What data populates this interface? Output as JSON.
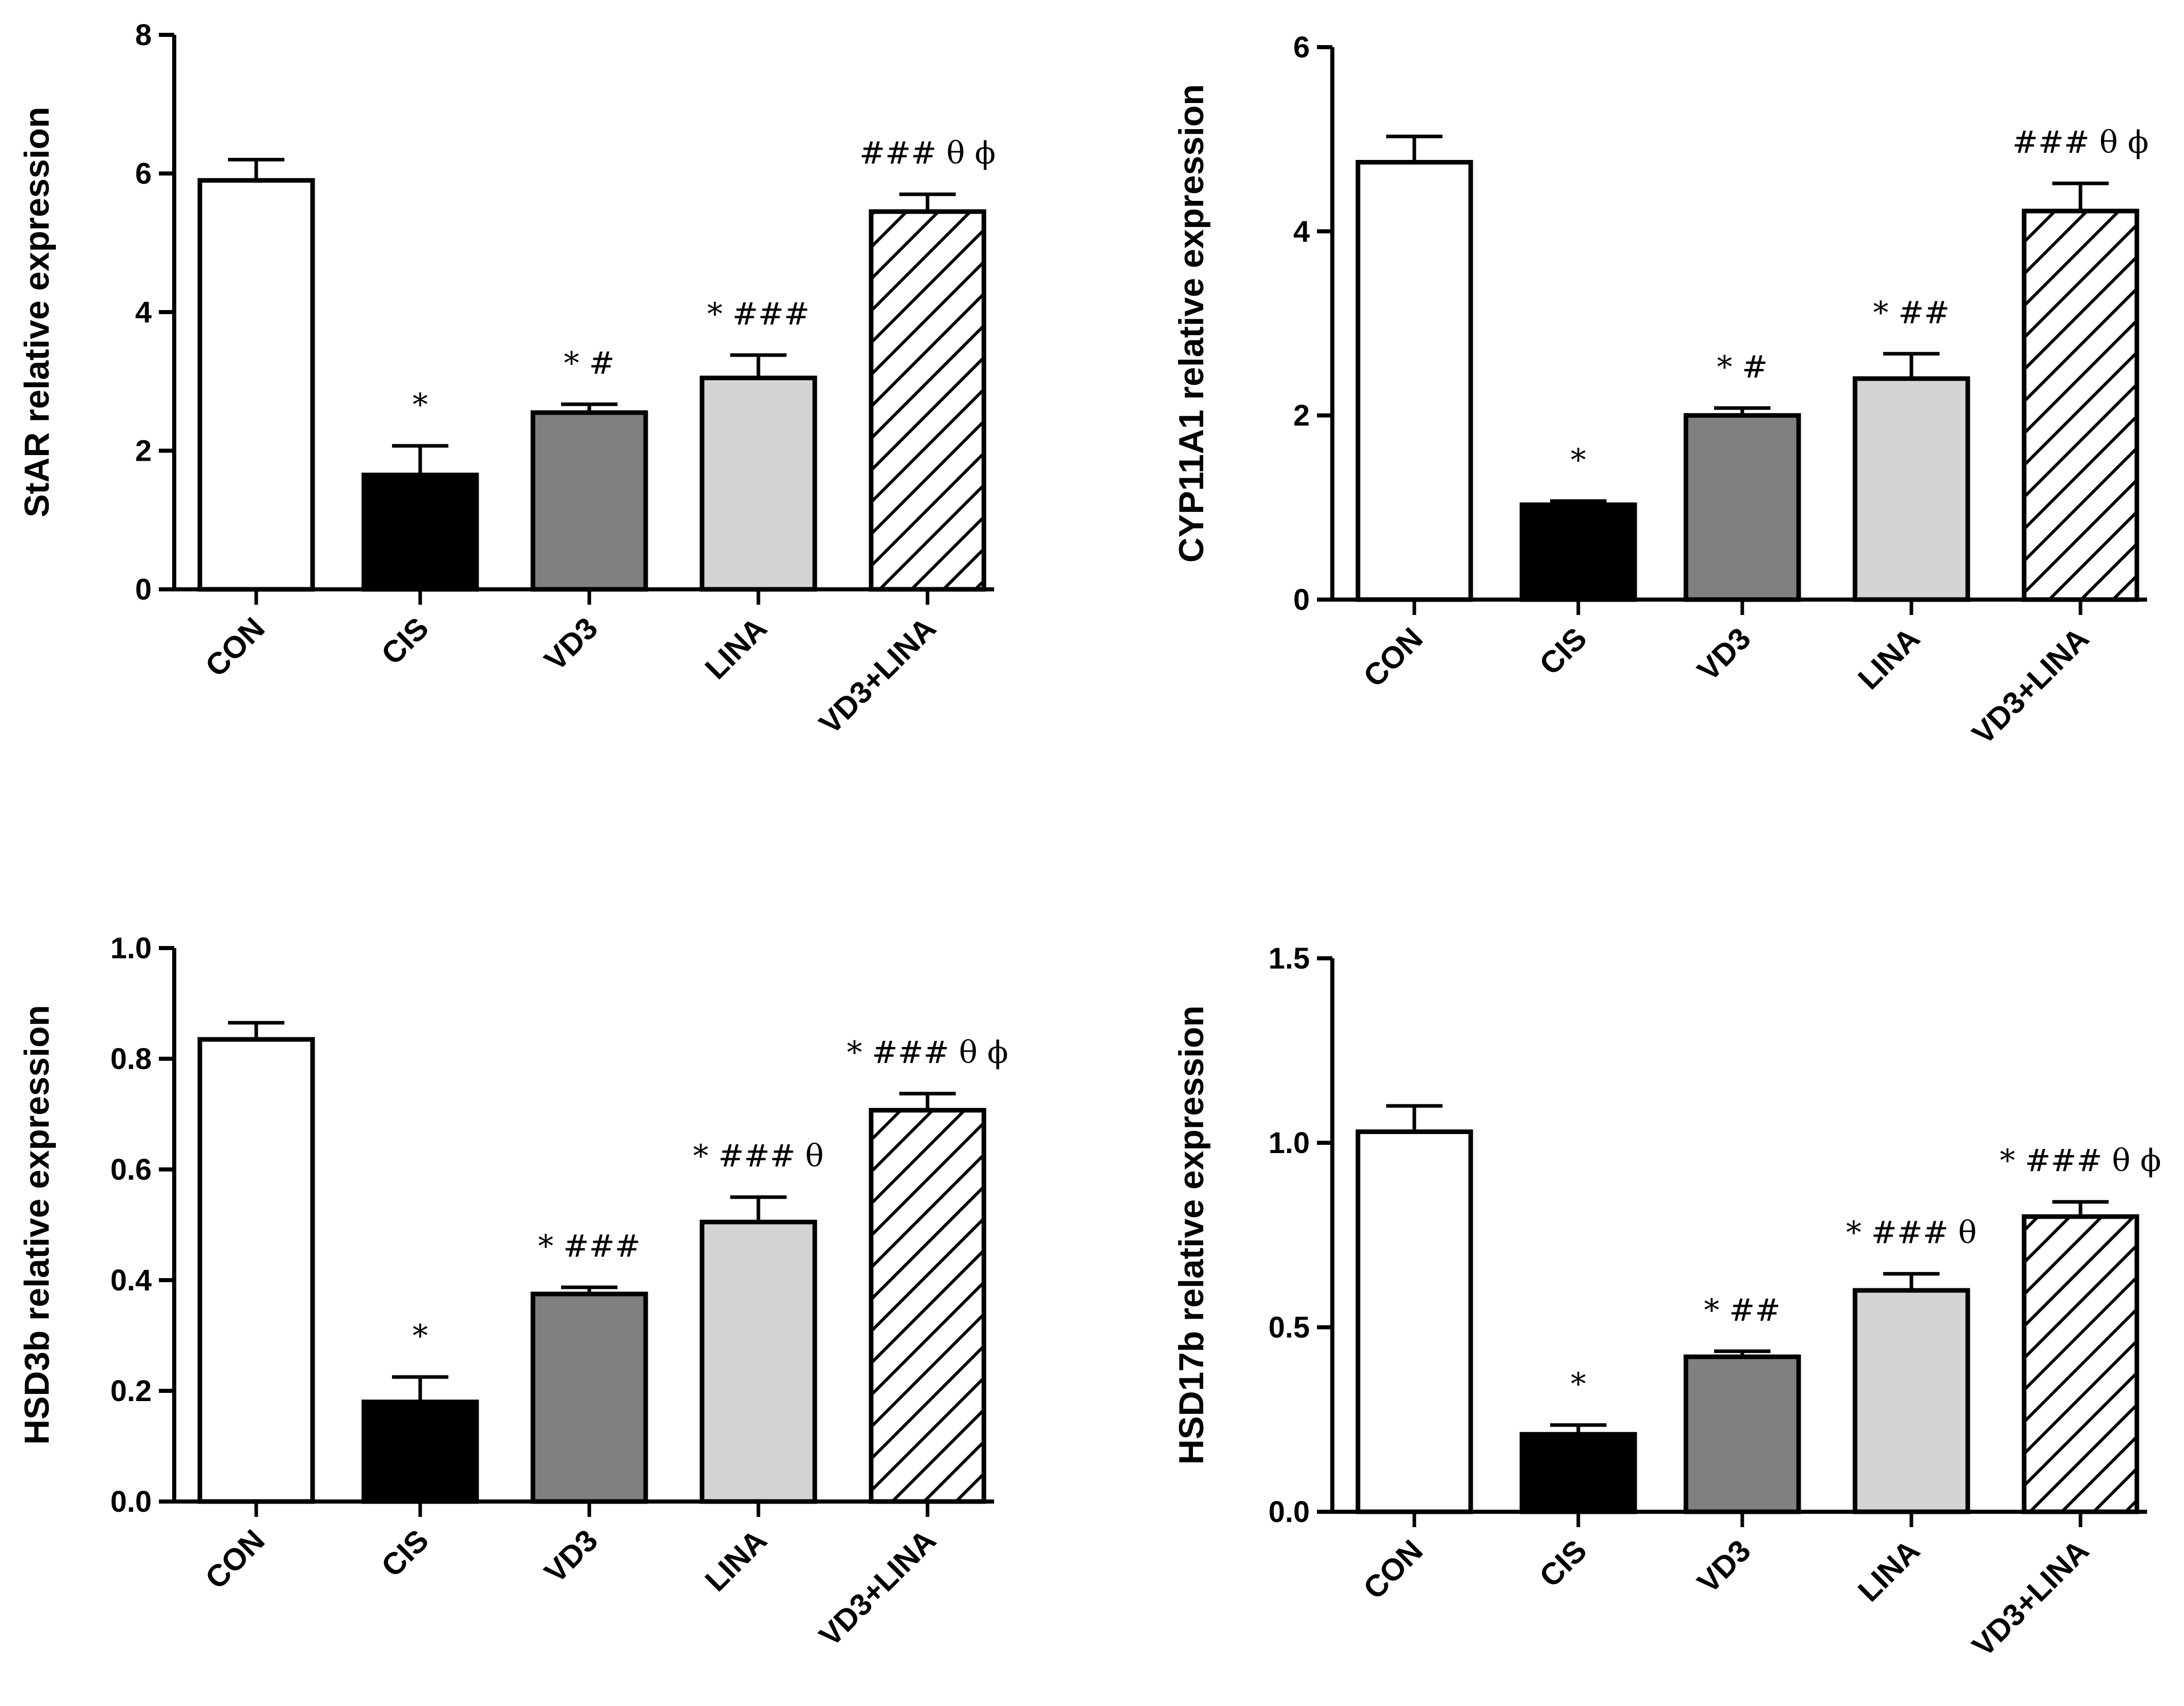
{
  "chart_data": [
    {
      "type": "bar",
      "ylabel": "StAR relative expression",
      "xlabel": "",
      "title": "",
      "categories": [
        "CON",
        "CIS",
        "VD3",
        "LINA",
        "VD3+LINA"
      ],
      "values": [
        5.9,
        1.65,
        2.55,
        3.05,
        5.45
      ],
      "errors": [
        0.3,
        0.42,
        0.12,
        0.33,
        0.25
      ],
      "annotations": [
        "",
        "*",
        "* #",
        "* ###",
        "### θ ϕ"
      ],
      "ylim": [
        0,
        8
      ],
      "yticks": [
        0,
        2,
        4,
        6,
        8
      ],
      "ytick_labels": [
        "0",
        "2",
        "4",
        "6",
        "8"
      ]
    },
    {
      "type": "bar",
      "ylabel": "CYP11A1 relative expression",
      "xlabel": "",
      "title": "",
      "categories": [
        "CON",
        "CIS",
        "VD3",
        "LINA",
        "VD3+LINA"
      ],
      "values": [
        4.75,
        1.03,
        2.0,
        2.4,
        4.22
      ],
      "errors": [
        0.28,
        0.04,
        0.08,
        0.27,
        0.3
      ],
      "annotations": [
        "",
        "*",
        "* #",
        "* ##",
        "### θ ϕ"
      ],
      "ylim": [
        0,
        6
      ],
      "yticks": [
        0,
        2,
        4,
        6
      ],
      "ytick_labels": [
        "0",
        "2",
        "4",
        "6"
      ]
    },
    {
      "type": "bar",
      "ylabel": "HSD3b relative expression",
      "xlabel": "",
      "title": "",
      "categories": [
        "CON",
        "CIS",
        "VD3",
        "LINA",
        "VD3+LINA"
      ],
      "values": [
        0.835,
        0.18,
        0.375,
        0.505,
        0.707
      ],
      "errors": [
        0.03,
        0.045,
        0.012,
        0.045,
        0.03
      ],
      "annotations": [
        "",
        "*",
        "* ###",
        "* ### θ",
        "* ### θ ϕ"
      ],
      "ylim": [
        0,
        1.0
      ],
      "yticks": [
        0,
        0.2,
        0.4,
        0.6,
        0.8,
        1.0
      ],
      "ytick_labels": [
        "0.0",
        "0.2",
        "0.4",
        "0.6",
        "0.8",
        "1.0"
      ]
    },
    {
      "type": "bar",
      "ylabel": "HSD17b relative expression",
      "xlabel": "",
      "title": "",
      "categories": [
        "CON",
        "CIS",
        "VD3",
        "LINA",
        "VD3+LINA"
      ],
      "values": [
        1.03,
        0.21,
        0.42,
        0.6,
        0.8
      ],
      "errors": [
        0.07,
        0.025,
        0.015,
        0.045,
        0.04
      ],
      "annotations": [
        "",
        "*",
        "* ##",
        "* ### θ",
        "* ### θ ϕ"
      ],
      "ylim": [
        0,
        1.5
      ],
      "yticks": [
        0,
        0.5,
        1.0,
        1.5
      ],
      "ytick_labels": [
        "0.0",
        "0.5",
        "1.0",
        "1.5"
      ]
    }
  ],
  "colors": {
    "CON": "#ffffff",
    "CIS": "#000000",
    "VD3": "#808080",
    "LINA": "#d4d4d4",
    "VD3+LINA": "hatch"
  }
}
